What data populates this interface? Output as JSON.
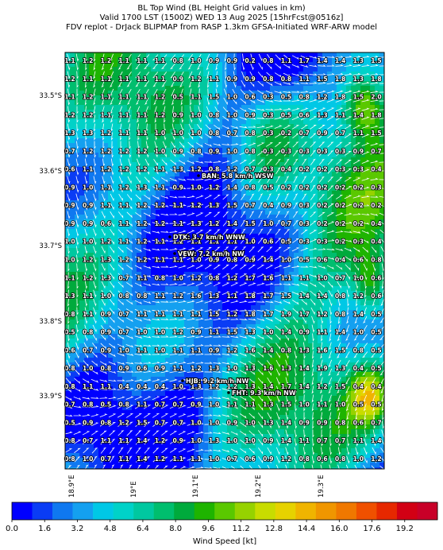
{
  "title": {
    "line1": "BL Top Wind (BL Height Grid values in km)",
    "line2": "Valid 1700 LST (1500Z) WED 13 Aug 2025 [15hrFcst@0516z]",
    "line3": "FDV replot - DrJack BLIPMAP from RASP 1.3km GFSA-Initiated WRF-ARW model"
  },
  "map": {
    "lat_labels": [
      "33.5°S",
      "33.6°S",
      "33.7°S",
      "33.8°S",
      "33.9°S"
    ],
    "lon_labels": [
      "18.9°E",
      "19°E",
      "19.1°E",
      "19.2°E",
      "19.3°E"
    ],
    "stations": [
      {
        "label": "BAN: 5.8 km/h WSW"
      },
      {
        "label": "DTK: 3.7 km/h WNW"
      },
      {
        "label": "VEW: 7.2 km/h NW"
      },
      {
        "label": "HJB: 9.2 km/h NW"
      },
      {
        "label": "FHT: 9.3 km/h NW"
      }
    ],
    "grid_values": [
      [
        "1.1",
        "1.2",
        "1.2",
        "1.1",
        "1.1",
        "1.1",
        "0.8",
        "1.0",
        "0.9",
        "0.9",
        "0.2",
        "0.8",
        "1.1",
        "1.7",
        "1.4",
        "1.4",
        "1.3",
        "1.5"
      ],
      [
        "1.2",
        "1.1",
        "1.1",
        "1.1",
        "1.1",
        "1.1",
        "0.9",
        "1.2",
        "1.1",
        "0.9",
        "0.9",
        "0.8",
        "0.8",
        "1.1",
        "1.5",
        "1.8",
        "1.3",
        "1.8"
      ],
      [
        "1.1",
        "1.2",
        "1.1",
        "1.1",
        "1.1",
        "1.2",
        "0.5",
        "1.1",
        "1.5",
        "1.0",
        "0.6",
        "0.3",
        "0.5",
        "0.8",
        "1.2",
        "1.8",
        "1.5",
        "2.0"
      ],
      [
        "1.2",
        "1.2",
        "1.1",
        "1.1",
        "1.1",
        "1.2",
        "0.9",
        "1.0",
        "0.8",
        "1.0",
        "0.9",
        "0.3",
        "0.5",
        "0.6",
        "1.3",
        "1.1",
        "1.4",
        "1.8"
      ],
      [
        "1.3",
        "1.3",
        "1.2",
        "1.1",
        "1.1",
        "1.0",
        "1.0",
        "1.0",
        "0.8",
        "0.7",
        "0.8",
        "0.3",
        "0.2",
        "0.7",
        "0.9",
        "0.7",
        "1.1",
        "1.5"
      ],
      [
        "0.7",
        "1.2",
        "1.2",
        "1.2",
        "1.2",
        "1.0",
        "0.9",
        "0.8",
        "0.9",
        "1.0",
        "0.8",
        "0.3",
        "0.3",
        "0.3",
        "0.3",
        "0.3",
        "0.9",
        "0.7"
      ],
      [
        "0.6",
        "1.1",
        "1.2",
        "1.2",
        "1.2",
        "1.1",
        "1.3",
        "1.2",
        "0.8",
        "1.2",
        "0.7",
        "0.3",
        "0.4",
        "0.2",
        "0.2",
        "0.3",
        "0.3",
        "0.4"
      ],
      [
        "0.9",
        "1.0",
        "1.1",
        "1.2",
        "1.3",
        "1.1",
        "0.9",
        "1.0",
        "1.2",
        "1.4",
        "0.8",
        "0.5",
        "0.2",
        "0.2",
        "0.2",
        "0.2",
        "0.2",
        "0.3"
      ],
      [
        "0.9",
        "0.9",
        "1.1",
        "1.1",
        "1.2",
        "1.2",
        "1.1",
        "1.2",
        "1.3",
        "1.5",
        "0.7",
        "0.4",
        "0.9",
        "0.3",
        "0.2",
        "0.2",
        "0.2",
        "0.2"
      ],
      [
        "0.9",
        "0.9",
        "0.6",
        "1.1",
        "1.2",
        "1.2",
        "1.1",
        "1.3",
        "1.2",
        "1.4",
        "1.5",
        "1.0",
        "0.7",
        "0.3",
        "0.2",
        "0.2",
        "0.2",
        "0.4"
      ],
      [
        "1.0",
        "1.0",
        "1.2",
        "1.1",
        "1.2",
        "1.1",
        "1.2",
        "1.1",
        "1.1",
        "1.1",
        "1.0",
        "0.6",
        "0.5",
        "0.3",
        "0.3",
        "0.2",
        "0.3",
        "0.4"
      ],
      [
        "1.0",
        "1.2",
        "1.3",
        "1.2",
        "1.2",
        "1.1",
        "1.1",
        "1.0",
        "0.9",
        "0.8",
        "0.9",
        "1.4",
        "1.0",
        "0.5",
        "0.6",
        "0.4",
        "0.6",
        "0.8"
      ],
      [
        "1.1",
        "1.2",
        "1.3",
        "0.7",
        "1.1",
        "0.8",
        "1.0",
        "1.2",
        "0.8",
        "1.2",
        "1.7",
        "1.6",
        "1.1",
        "1.1",
        "1.0",
        "0.7",
        "1.0",
        "0.6"
      ],
      [
        "1.3",
        "1.1",
        "1.0",
        "0.8",
        "0.8",
        "1.1",
        "1.2",
        "1.6",
        "1.3",
        "1.1",
        "1.8",
        "1.7",
        "1.5",
        "1.4",
        "1.4",
        "0.8",
        "1.2",
        "0.6"
      ],
      [
        "0.8",
        "1.1",
        "0.9",
        "0.7",
        "1.1",
        "1.1",
        "1.1",
        "1.1",
        "1.5",
        "1.2",
        "1.8",
        "1.7",
        "1.9",
        "1.7",
        "1.2",
        "0.8",
        "1.4",
        "0.5"
      ],
      [
        "0.5",
        "0.8",
        "0.9",
        "0.7",
        "1.0",
        "1.0",
        "1.2",
        "0.9",
        "1.1",
        "1.5",
        "1.3",
        "1.0",
        "1.4",
        "0.9",
        "1.1",
        "1.4",
        "1.0",
        "0.5"
      ],
      [
        "0.6",
        "0.7",
        "0.9",
        "1.0",
        "1.1",
        "1.0",
        "1.1",
        "1.1",
        "0.9",
        "1.2",
        "1.6",
        "1.4",
        "0.8",
        "1.3",
        "1.6",
        "1.5",
        "0.8",
        "0.5"
      ],
      [
        "0.8",
        "1.0",
        "0.8",
        "0.9",
        "0.6",
        "0.9",
        "1.1",
        "1.2",
        "1.3",
        "1.0",
        "1.3",
        "1.6",
        "1.3",
        "1.4",
        "1.9",
        "1.3",
        "0.4",
        "0.5"
      ],
      [
        "0.8",
        "1.1",
        "1.1",
        "0.4",
        "0.4",
        "0.4",
        "1.0",
        "1.3",
        "1.2",
        "1.2",
        "1.3",
        "1.4",
        "1.7",
        "1.4",
        "1.2",
        "1.5",
        "0.4",
        "0.4"
      ],
      [
        "0.7",
        "0.8",
        "0.5",
        "0.8",
        "1.1",
        "0.7",
        "0.7",
        "0.9",
        "1.0",
        "1.1",
        "1.1",
        "1.3",
        "1.5",
        "1.0",
        "1.1",
        "1.0",
        "0.5",
        "0.5"
      ],
      [
        "0.5",
        "0.9",
        "0.8",
        "1.2",
        "1.5",
        "0.7",
        "0.7",
        "1.0",
        "1.0",
        "0.9",
        "1.0",
        "1.3",
        "1.4",
        "0.9",
        "0.9",
        "0.8",
        "0.6",
        "0.7"
      ],
      [
        "0.8",
        "0.7",
        "1.1",
        "1.1",
        "1.4",
        "1.2",
        "0.9",
        "1.0",
        "1.3",
        "1.0",
        "1.0",
        "0.9",
        "1.4",
        "1.1",
        "0.7",
        "0.7",
        "1.1",
        "1.4"
      ],
      [
        "0.8",
        "1.0",
        "0.7",
        "1.1",
        "1.4",
        "1.2",
        "1.1",
        "1.1",
        "1.0",
        "0.7",
        "0.6",
        "0.9",
        "1.2",
        "0.8",
        "0.6",
        "0.8",
        "1.0",
        "1.2"
      ]
    ]
  },
  "colorbar": {
    "label": "Wind Speed [kt]",
    "ticks": [
      "0.0",
      "1.6",
      "3.2",
      "4.8",
      "6.4",
      "8.0",
      "9.6",
      "11.2",
      "12.8",
      "14.4",
      "16.0",
      "17.6",
      "19.2"
    ],
    "colors": [
      "#0000ff",
      "#0a3cf5",
      "#0f78f0",
      "#14a0f0",
      "#00c8e6",
      "#00d2c8",
      "#00c8a0",
      "#00be6e",
      "#00aa3c",
      "#1eb400",
      "#5ac800",
      "#96d200",
      "#c8dc00",
      "#e6d200",
      "#f0b400",
      "#f09600",
      "#f07800",
      "#f05000",
      "#e62800",
      "#d20014",
      "#c80028"
    ]
  }
}
